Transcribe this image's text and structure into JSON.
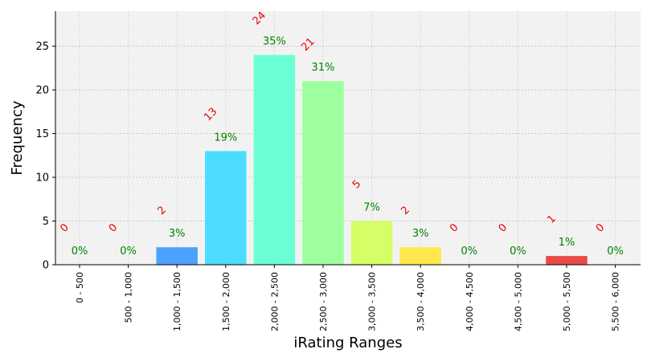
{
  "chart_data": {
    "type": "bar",
    "title": "",
    "xlabel": "iRating Ranges",
    "ylabel": "Frequency",
    "ylim": [
      0,
      29
    ],
    "yticks": [
      0,
      5,
      10,
      15,
      20,
      25
    ],
    "grid": true,
    "categories": [
      "0 - 500",
      "500 - 1,000",
      "1,000 - 1,500",
      "1,500 - 2,000",
      "2,000 - 2,500",
      "2,500 - 3,000",
      "3,000 - 3,500",
      "3,500 - 4,000",
      "4,000 - 4,500",
      "4,500 - 5,000",
      "5,000 - 5,500",
      "5,500 - 6,000"
    ],
    "values": [
      0,
      0,
      2,
      13,
      24,
      21,
      5,
      2,
      0,
      0,
      1,
      0
    ],
    "count_labels": [
      "0",
      "0",
      "2",
      "13",
      "24",
      "21",
      "5",
      "2",
      "0",
      "0",
      "1",
      "0"
    ],
    "percent_labels": [
      "0%",
      "0%",
      "3%",
      "19%",
      "35%",
      "31%",
      "7%",
      "3%",
      "0%",
      "0%",
      "1%",
      "0%"
    ],
    "colors": [
      "#1f77b4",
      "#2a8ee8",
      "#4ca3ff",
      "#4cdcff",
      "#6affd4",
      "#9dff9d",
      "#d4ff66",
      "#ffe84c",
      "#ffa23a",
      "#ff7a33",
      "#e84a4a",
      "#b01010"
    ]
  }
}
